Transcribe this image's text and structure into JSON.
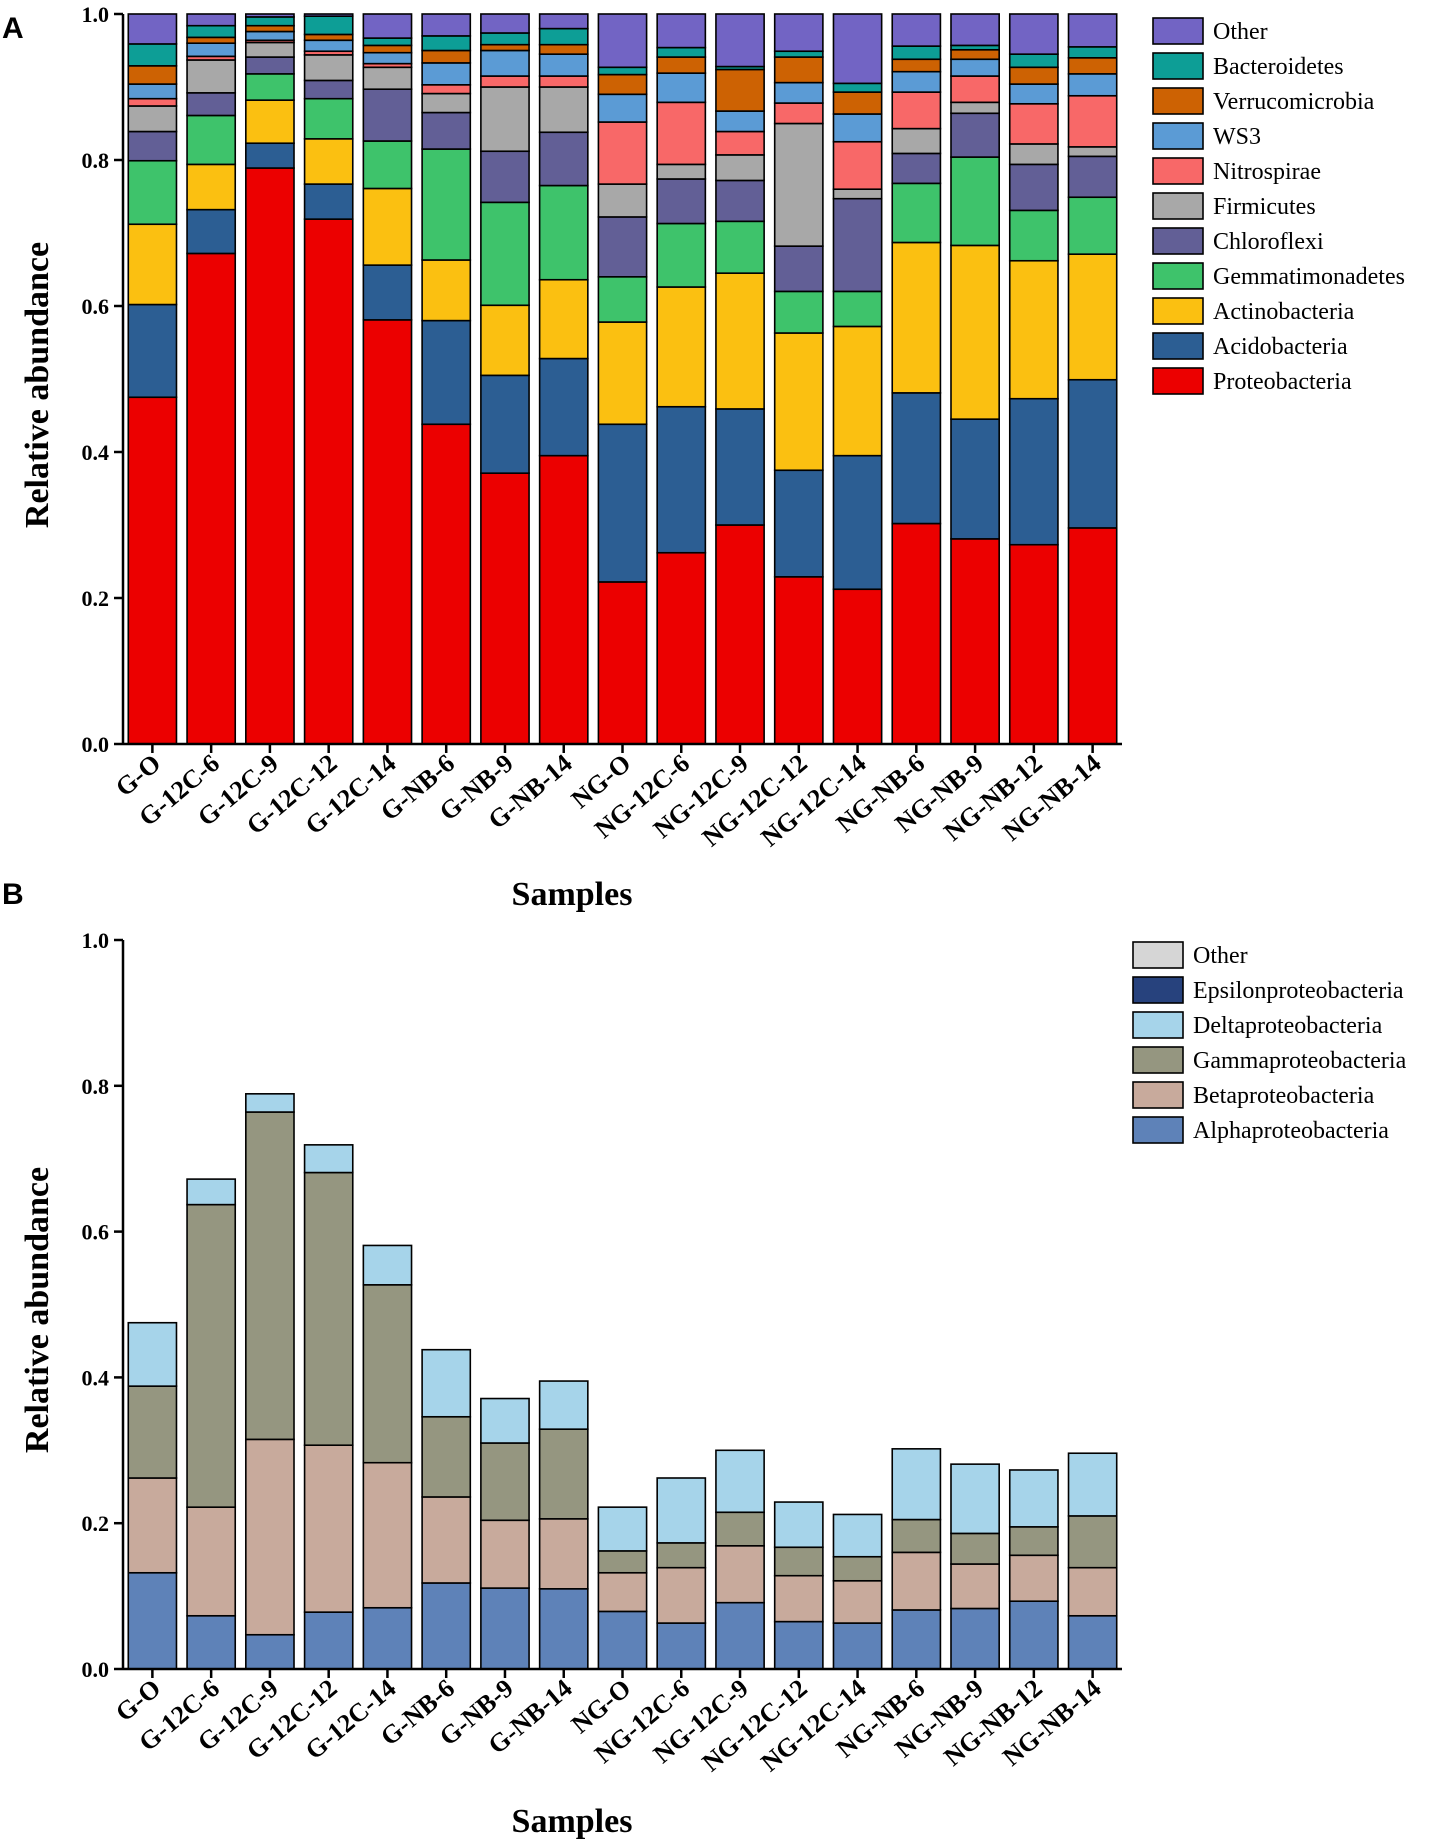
{
  "figure": {
    "samples": [
      "G-O",
      "G-12C-6",
      "G-12C-9",
      "G-12C-12",
      "G-12C-14",
      "G-NB-6",
      "G-NB-9",
      "G-NB-14",
      "NG-O",
      "NG-12C-6",
      "NG-12C-9",
      "NG-12C-12",
      "NG-12C-14",
      "NG-NB-6",
      "NG-NB-9",
      "NG-NB-12",
      "NG-NB-14"
    ]
  },
  "chart_data": [
    {
      "panel_label": "A",
      "type": "bar",
      "stacked": true,
      "title": "",
      "xlabel": "Samples",
      "ylabel": "Relative abundance",
      "ylim": [
        0,
        1.0
      ],
      "yticks": [
        "0.0",
        "0.2",
        "0.4",
        "0.6",
        "0.8",
        "1.0"
      ],
      "categories": [
        "G-O",
        "G-12C-6",
        "G-12C-9",
        "G-12C-12",
        "G-12C-14",
        "G-NB-6",
        "G-NB-9",
        "G-NB-14",
        "NG-O",
        "NG-12C-6",
        "NG-12C-9",
        "NG-12C-12",
        "NG-12C-14",
        "NG-NB-6",
        "NG-NB-9",
        "NG-NB-12",
        "NG-NB-14"
      ],
      "legend_position": "top-right",
      "series": [
        {
          "name": "Proteobacteria",
          "color": "#ec0000",
          "values": [
            0.475,
            0.672,
            0.789,
            0.719,
            0.581,
            0.438,
            0.371,
            0.395,
            0.222,
            0.262,
            0.3,
            0.229,
            0.212,
            0.302,
            0.281,
            0.273,
            0.296
          ]
        },
        {
          "name": "Acidobacteria",
          "color": "#2c5e93",
          "values": [
            0.127,
            0.06,
            0.034,
            0.048,
            0.075,
            0.142,
            0.134,
            0.133,
            0.216,
            0.2,
            0.159,
            0.146,
            0.183,
            0.179,
            0.164,
            0.2,
            0.203
          ]
        },
        {
          "name": "Actinobacteria",
          "color": "#fbc011",
          "values": [
            0.11,
            0.062,
            0.059,
            0.062,
            0.105,
            0.083,
            0.096,
            0.108,
            0.14,
            0.164,
            0.186,
            0.188,
            0.177,
            0.206,
            0.238,
            0.189,
            0.172
          ]
        },
        {
          "name": "Gemmatimonadetes",
          "color": "#3ec36b",
          "values": [
            0.087,
            0.067,
            0.036,
            0.055,
            0.065,
            0.152,
            0.141,
            0.129,
            0.062,
            0.087,
            0.071,
            0.057,
            0.048,
            0.081,
            0.121,
            0.069,
            0.078
          ]
        },
        {
          "name": "Chloroflexi",
          "color": "#625f96",
          "values": [
            0.04,
            0.031,
            0.023,
            0.025,
            0.071,
            0.05,
            0.07,
            0.073,
            0.082,
            0.061,
            0.056,
            0.062,
            0.127,
            0.041,
            0.06,
            0.063,
            0.056
          ]
        },
        {
          "name": "Firmicutes",
          "color": "#a8a8a8",
          "values": [
            0.035,
            0.045,
            0.02,
            0.035,
            0.03,
            0.026,
            0.088,
            0.062,
            0.045,
            0.02,
            0.035,
            0.168,
            0.013,
            0.034,
            0.015,
            0.028,
            0.013
          ]
        },
        {
          "name": "Nitrospirae",
          "color": "#f86868",
          "values": [
            0.01,
            0.005,
            0.003,
            0.005,
            0.005,
            0.012,
            0.015,
            0.015,
            0.085,
            0.085,
            0.032,
            0.028,
            0.065,
            0.05,
            0.036,
            0.055,
            0.07
          ]
        },
        {
          "name": "WS3",
          "color": "#5b9bd5",
          "values": [
            0.02,
            0.018,
            0.012,
            0.015,
            0.015,
            0.03,
            0.035,
            0.03,
            0.038,
            0.04,
            0.028,
            0.028,
            0.038,
            0.028,
            0.023,
            0.027,
            0.03
          ]
        },
        {
          "name": "Verrucomicrobia",
          "color": "#cd6203",
          "values": [
            0.025,
            0.008,
            0.008,
            0.008,
            0.01,
            0.017,
            0.008,
            0.013,
            0.027,
            0.022,
            0.057,
            0.035,
            0.03,
            0.017,
            0.013,
            0.023,
            0.022
          ]
        },
        {
          "name": "Bacteroidetes",
          "color": "#0d9e96",
          "values": [
            0.03,
            0.016,
            0.012,
            0.025,
            0.01,
            0.02,
            0.016,
            0.022,
            0.01,
            0.013,
            0.004,
            0.008,
            0.012,
            0.018,
            0.006,
            0.018,
            0.015
          ]
        },
        {
          "name": "Other",
          "color": "#7264c4",
          "values": [
            0.041,
            0.016,
            0.004,
            0.003,
            0.033,
            0.03,
            0.026,
            0.02,
            0.073,
            0.046,
            0.072,
            0.051,
            0.095,
            0.044,
            0.043,
            0.055,
            0.045
          ]
        }
      ]
    },
    {
      "panel_label": "B",
      "type": "bar",
      "stacked": true,
      "title": "",
      "xlabel": "Samples",
      "ylabel": "Relative abundance",
      "ylim": [
        0,
        1.0
      ],
      "yticks": [
        "0.0",
        "0.2",
        "0.4",
        "0.6",
        "0.8",
        "1.0"
      ],
      "categories": [
        "G-O",
        "G-12C-6",
        "G-12C-9",
        "G-12C-12",
        "G-12C-14",
        "G-NB-6",
        "G-NB-9",
        "G-NB-14",
        "NG-O",
        "NG-12C-6",
        "NG-12C-9",
        "NG-12C-12",
        "NG-12C-14",
        "NG-NB-6",
        "NG-NB-9",
        "NG-NB-12",
        "NG-NB-14"
      ],
      "legend_position": "top-right",
      "series": [
        {
          "name": "Alphaproteobacteria",
          "color": "#5e82b8",
          "values": [
            0.132,
            0.073,
            0.047,
            0.078,
            0.084,
            0.118,
            0.111,
            0.11,
            0.079,
            0.063,
            0.091,
            0.065,
            0.063,
            0.081,
            0.083,
            0.093,
            0.073
          ]
        },
        {
          "name": "Betaproteobacteria",
          "color": "#c8aa9c",
          "values": [
            0.13,
            0.149,
            0.268,
            0.229,
            0.199,
            0.118,
            0.093,
            0.096,
            0.053,
            0.076,
            0.078,
            0.063,
            0.058,
            0.079,
            0.061,
            0.063,
            0.066
          ]
        },
        {
          "name": "Gammaproteobacteria",
          "color": "#959680",
          "values": [
            0.126,
            0.415,
            0.449,
            0.374,
            0.244,
            0.11,
            0.106,
            0.123,
            0.03,
            0.034,
            0.046,
            0.039,
            0.033,
            0.045,
            0.042,
            0.039,
            0.071
          ]
        },
        {
          "name": "Deltaproteobacteria",
          "color": "#a6d4ea",
          "values": [
            0.087,
            0.035,
            0.025,
            0.038,
            0.054,
            0.092,
            0.061,
            0.066,
            0.06,
            0.089,
            0.085,
            0.062,
            0.058,
            0.097,
            0.095,
            0.078,
            0.086
          ]
        },
        {
          "name": "Epsilonproteobacteria",
          "color": "#27427d",
          "values": [
            0,
            0,
            0,
            0,
            0,
            0,
            0,
            0,
            0,
            0,
            0,
            0,
            0,
            0,
            0,
            0,
            0
          ]
        },
        {
          "name": "Other",
          "color": "#d6d6d6",
          "values": [
            0,
            0,
            0,
            0,
            0,
            0,
            0,
            0,
            0,
            0,
            0,
            0,
            0,
            0,
            0,
            0,
            0
          ]
        }
      ],
      "legend_order": [
        "Other",
        "Epsilonproteobacteria",
        "Deltaproteobacteria",
        "Gammaproteobacteria",
        "Betaproteobacteria",
        "Alphaproteobacteria"
      ]
    }
  ]
}
